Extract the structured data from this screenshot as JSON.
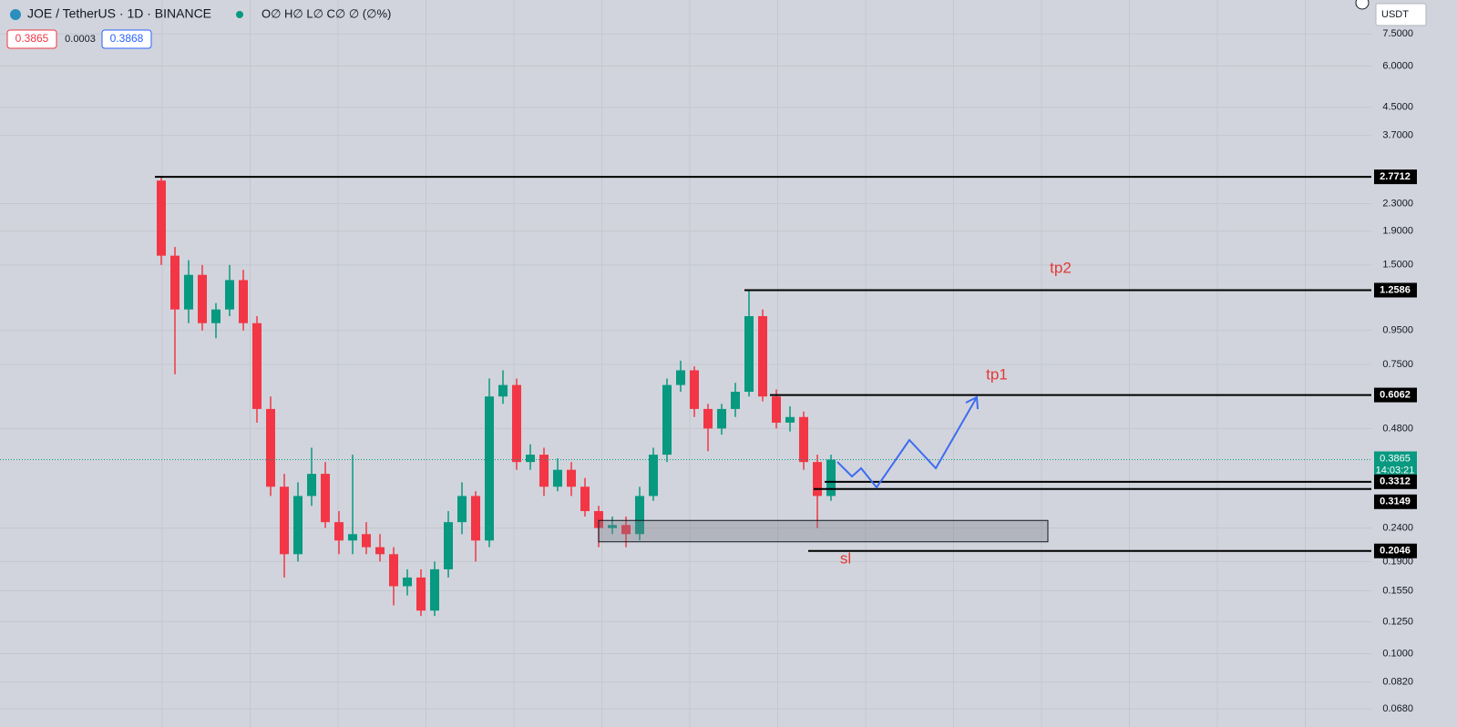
{
  "header": {
    "symbol": "JOE / TetherUS · 1D · BINANCE",
    "ohlc": "O∅ H∅ L∅ C∅ ∅ (∅%)",
    "spread": 0.0003,
    "ask": 0.3868,
    "currency": "USDT"
  },
  "chart_data": {
    "type": "candlestick",
    "log_scale": true,
    "grid": true,
    "up_color": "#089981",
    "down_color": "#f23645",
    "open": [
      2.7,
      1.6,
      1.1,
      1.4,
      1.0,
      1.1,
      1.35,
      1.0,
      0.55,
      0.32,
      0.2,
      0.3,
      0.35,
      0.25,
      0.22,
      0.23,
      0.21,
      0.2,
      0.16,
      0.17,
      0.135,
      0.18,
      0.25,
      0.3,
      0.22,
      0.6,
      0.65,
      0.38,
      0.4,
      0.32,
      0.36,
      0.32,
      0.27,
      0.24,
      0.245,
      0.23,
      0.3,
      0.4,
      0.65,
      0.72,
      0.55,
      0.48,
      0.55,
      0.62,
      1.05,
      0.6,
      0.5,
      0.52,
      0.38,
      0.3
    ],
    "high": [
      2.7712,
      1.7,
      1.55,
      1.5,
      1.15,
      1.5,
      1.45,
      1.05,
      0.6,
      0.35,
      0.33,
      0.42,
      0.38,
      0.27,
      0.4,
      0.25,
      0.23,
      0.21,
      0.18,
      0.18,
      0.19,
      0.27,
      0.33,
      0.31,
      0.68,
      0.72,
      0.68,
      0.43,
      0.42,
      0.39,
      0.38,
      0.34,
      0.28,
      0.26,
      0.26,
      0.32,
      0.42,
      0.68,
      0.77,
      0.74,
      0.57,
      0.57,
      0.66,
      1.2586,
      1.1,
      0.63,
      0.56,
      0.54,
      0.4,
      0.4
    ],
    "low": [
      1.5,
      0.7,
      1.0,
      0.95,
      0.9,
      1.05,
      0.95,
      0.5,
      0.3,
      0.17,
      0.19,
      0.28,
      0.24,
      0.2,
      0.2,
      0.2,
      0.19,
      0.14,
      0.15,
      0.13,
      0.13,
      0.17,
      0.23,
      0.19,
      0.21,
      0.57,
      0.36,
      0.36,
      0.3,
      0.31,
      0.3,
      0.26,
      0.21,
      0.23,
      0.21,
      0.22,
      0.29,
      0.38,
      0.62,
      0.52,
      0.41,
      0.46,
      0.52,
      0.6,
      0.58,
      0.48,
      0.47,
      0.36,
      0.24,
      0.29
    ],
    "close": [
      1.6,
      1.1,
      1.4,
      1.0,
      1.1,
      1.35,
      1.0,
      0.55,
      0.32,
      0.2,
      0.3,
      0.35,
      0.25,
      0.22,
      0.23,
      0.21,
      0.2,
      0.16,
      0.17,
      0.135,
      0.18,
      0.25,
      0.3,
      0.22,
      0.6,
      0.65,
      0.38,
      0.4,
      0.32,
      0.36,
      0.32,
      0.27,
      0.24,
      0.245,
      0.23,
      0.3,
      0.4,
      0.65,
      0.72,
      0.55,
      0.48,
      0.55,
      0.62,
      1.05,
      0.6,
      0.5,
      0.52,
      0.38,
      0.3,
      0.3865
    ],
    "ylim": [
      0.06,
      9.5
    ],
    "yticks": [
      {
        "value": 7.5,
        "label": "7.5000"
      },
      {
        "value": 6,
        "label": "6.0000"
      },
      {
        "value": 4.5,
        "label": "4.5000"
      },
      {
        "value": 3.7,
        "label": "3.7000"
      },
      {
        "value": 2.3,
        "label": "2.3000"
      },
      {
        "value": 1.9,
        "label": "1.9000"
      },
      {
        "value": 1.5,
        "label": "1.5000"
      },
      {
        "value": 0.95,
        "label": "0.9500"
      },
      {
        "value": 0.75,
        "label": "0.7500"
      },
      {
        "value": 0.48,
        "label": "0.4800"
      },
      {
        "value": 0.24,
        "label": "0.2400"
      },
      {
        "value": 0.19,
        "label": "0.1900"
      },
      {
        "value": 0.155,
        "label": "0.1550"
      },
      {
        "value": 0.125,
        "label": "0.1250"
      },
      {
        "value": 0.1,
        "label": "0.1000"
      },
      {
        "value": 0.082,
        "label": "0.0820"
      },
      {
        "value": 0.068,
        "label": "0.0680"
      }
    ],
    "current_price": 0.3865,
    "countdown": "14:03:21",
    "levels": [
      2.7712,
      1.2586,
      0.6062,
      0.3312,
      0.3149,
      0.2046
    ],
    "zone": [
      0.218,
      0.253
    ],
    "annotations": [
      "tp2",
      "tp1",
      "sl"
    ]
  }
}
